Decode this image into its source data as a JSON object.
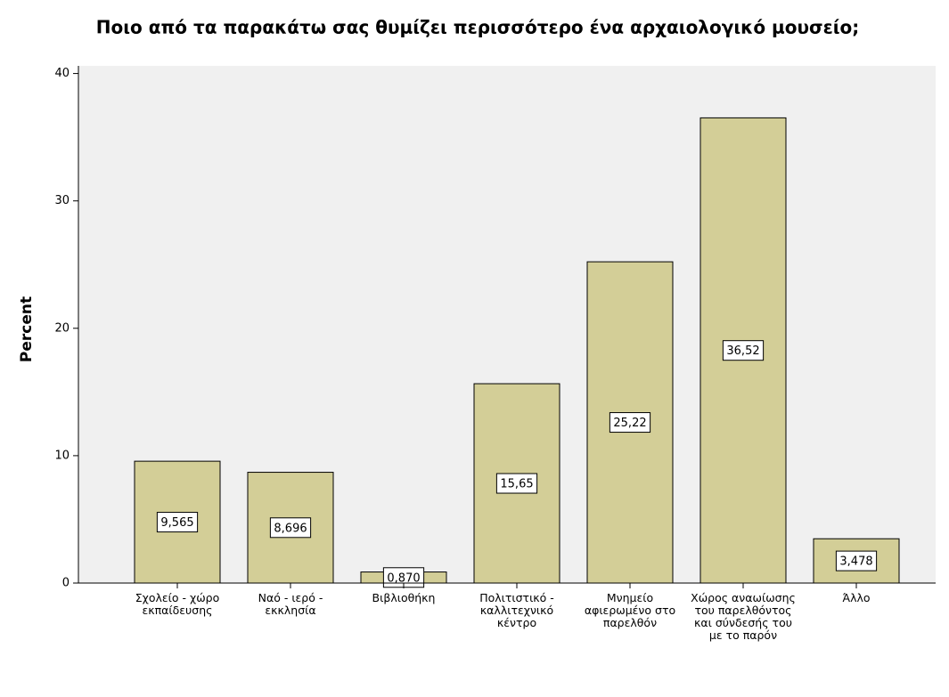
{
  "chart_data": {
    "type": "bar",
    "title": "Ποιο από τα παρακάτω σας θυμίζει περισσότερο ένα αρχαιολογικό μουσείο;",
    "y_label": "Percent",
    "categories": [
      "Σχολείο - χώρο εκπαίδευσης",
      "Ναό - ιερό - εκκλησία",
      "Βιβλιοθήκη",
      "Πολιτιστικό - καλλιτεχνικό κέντρο",
      "Μνημείο αφιερωμένο στο παρελθόν",
      "Χώρος αναωίωσης του παρελθόντος και σύνδεσής του με το παρόν",
      "Άλλο"
    ],
    "values": [
      9.565,
      8.696,
      0.87,
      15.65,
      25.22,
      36.52,
      3.478
    ],
    "value_labels": [
      "9,565",
      "8,696",
      "0,870",
      "15,65",
      "25,22",
      "36,52",
      "3,478"
    ],
    "color": "#d3ce97",
    "ylim": [
      0,
      40.6
    ],
    "yticks": [
      0,
      10,
      20,
      30,
      40
    ]
  }
}
